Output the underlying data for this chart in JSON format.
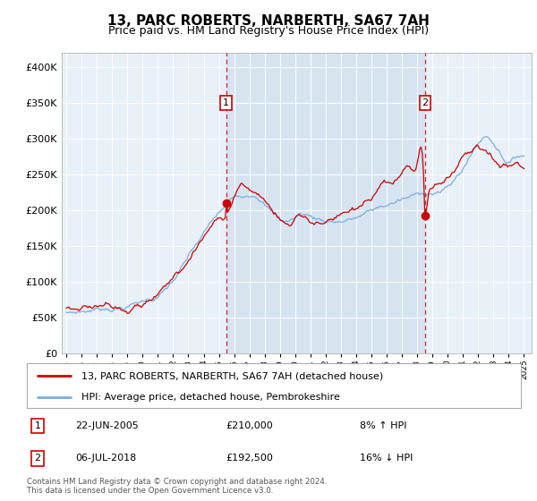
{
  "title": "13, PARC ROBERTS, NARBERTH, SA67 7AH",
  "subtitle": "Price paid vs. HM Land Registry's House Price Index (HPI)",
  "title_fontsize": 11,
  "subtitle_fontsize": 9,
  "plot_bg_color": "#e8f0f8",
  "hpi_color": "#7aaddd",
  "price_color": "#cc0000",
  "ylim": [
    0,
    420000
  ],
  "yticks": [
    0,
    50000,
    100000,
    150000,
    200000,
    250000,
    300000,
    350000,
    400000
  ],
  "sale1_date": 2005.47,
  "sale1_price": 210000,
  "sale2_date": 2018.51,
  "sale2_price": 192500,
  "sale1_text": "22-JUN-2005",
  "sale1_amount": "£210,000",
  "sale1_hpi": "8% ↑ HPI",
  "sale2_text": "06-JUL-2018",
  "sale2_amount": "£192,500",
  "sale2_hpi": "16% ↓ HPI",
  "legend_line1": "13, PARC ROBERTS, NARBERTH, SA67 7AH (detached house)",
  "legend_line2": "HPI: Average price, detached house, Pembrokeshire",
  "footer": "Contains HM Land Registry data © Crown copyright and database right 2024.\nThis data is licensed under the Open Government Licence v3.0.",
  "shade_color": "#cfe0f0",
  "xlim_start": 1994.7,
  "xlim_end": 2025.5
}
